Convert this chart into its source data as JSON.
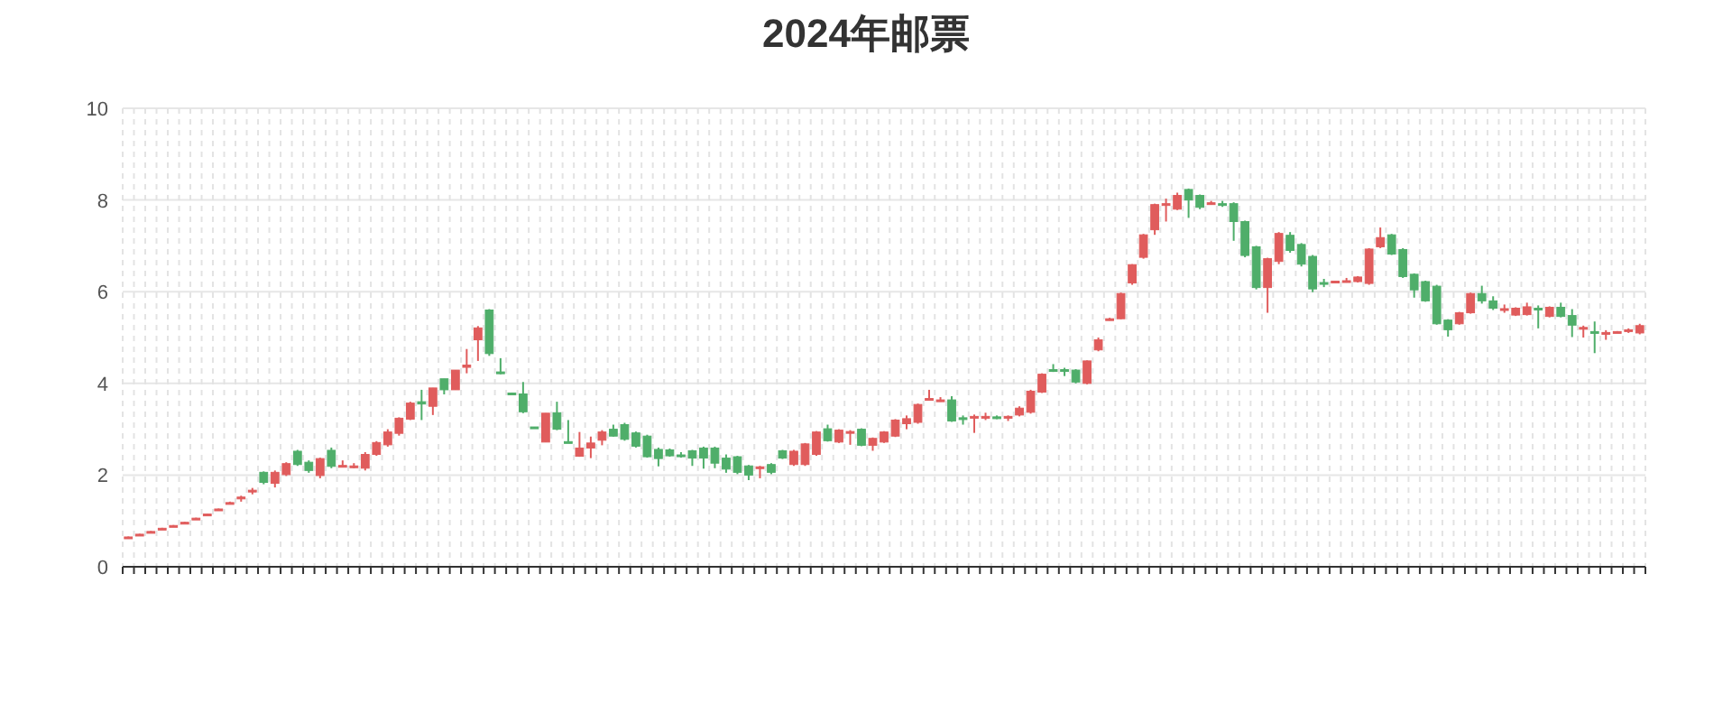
{
  "chart_data": {
    "type": "candlestick",
    "title": "2024年邮票",
    "categories": [
      null,
      null,
      null,
      null,
      null,
      null,
      null,
      null,
      null,
      null,
      null,
      null,
      null,
      null,
      null,
      null,
      null,
      null,
      null,
      null,
      null,
      null,
      null,
      null,
      null,
      null,
      null,
      null,
      null,
      null,
      null,
      null,
      null,
      null,
      null,
      null,
      null,
      null,
      null,
      null,
      null,
      null,
      null,
      null,
      null,
      null,
      null,
      null,
      null,
      null,
      null,
      null,
      null,
      null,
      null,
      null,
      null,
      null,
      null,
      null,
      null,
      null,
      null,
      null,
      null,
      null,
      null,
      null,
      null,
      null,
      null,
      null,
      null,
      null,
      null,
      null,
      null,
      null,
      null,
      null,
      null,
      null,
      null,
      null,
      null,
      null,
      null,
      null,
      null,
      null,
      null,
      null,
      null,
      null,
      null,
      null,
      null,
      null,
      null,
      null,
      null,
      null,
      null,
      null,
      null,
      null,
      null,
      null,
      null,
      null,
      null,
      null,
      null,
      null,
      null,
      null,
      null,
      null,
      null,
      null,
      null,
      null,
      null,
      null,
      null,
      null,
      null,
      null,
      null,
      null,
      null,
      null,
      null,
      null,
      null
    ],
    "ohlc": [
      [
        0.63,
        0.66,
        0.62,
        0.65
      ],
      [
        0.7,
        0.72,
        0.69,
        0.71
      ],
      [
        0.76,
        0.78,
        0.75,
        0.77
      ],
      [
        0.83,
        0.85,
        0.82,
        0.84
      ],
      [
        0.89,
        0.91,
        0.88,
        0.9
      ],
      [
        0.96,
        0.98,
        0.95,
        0.97
      ],
      [
        1.05,
        1.07,
        1.04,
        1.06
      ],
      [
        1.14,
        1.16,
        1.13,
        1.15
      ],
      [
        1.25,
        1.27,
        1.24,
        1.26
      ],
      [
        1.38,
        1.42,
        1.37,
        1.4
      ],
      [
        1.5,
        1.55,
        1.42,
        1.52
      ],
      [
        1.65,
        1.72,
        1.58,
        1.67
      ],
      [
        2.06,
        2.08,
        1.8,
        1.84
      ],
      [
        1.82,
        2.1,
        1.73,
        2.06
      ],
      [
        2.01,
        2.28,
        1.98,
        2.25
      ],
      [
        2.52,
        2.55,
        2.2,
        2.23
      ],
      [
        2.28,
        2.32,
        2.05,
        2.1
      ],
      [
        1.99,
        2.38,
        1.93,
        2.36
      ],
      [
        2.54,
        2.6,
        2.15,
        2.19
      ],
      [
        2.2,
        2.32,
        2.18,
        2.21
      ],
      [
        2.18,
        2.26,
        2.15,
        2.2
      ],
      [
        2.15,
        2.5,
        2.1,
        2.45
      ],
      [
        2.45,
        2.74,
        2.42,
        2.71
      ],
      [
        2.66,
        3.0,
        2.62,
        2.94
      ],
      [
        2.91,
        3.26,
        2.86,
        3.24
      ],
      [
        3.22,
        3.6,
        3.2,
        3.57
      ],
      [
        3.6,
        3.86,
        3.2,
        3.55
      ],
      [
        3.5,
        3.9,
        3.31,
        3.9
      ],
      [
        4.1,
        4.1,
        3.76,
        3.86
      ],
      [
        3.86,
        4.29,
        3.86,
        4.29
      ],
      [
        4.35,
        4.75,
        4.22,
        4.4
      ],
      [
        4.95,
        5.25,
        4.49,
        5.21
      ],
      [
        5.6,
        5.62,
        4.6,
        4.65
      ],
      [
        4.25,
        4.55,
        4.2,
        4.22
      ],
      [
        3.79,
        3.8,
        3.76,
        3.78
      ],
      [
        3.77,
        4.03,
        3.35,
        3.38
      ],
      [
        3.05,
        3.05,
        3.02,
        3.04
      ],
      [
        2.72,
        3.35,
        2.72,
        3.35
      ],
      [
        3.36,
        3.6,
        2.98,
        3.0
      ],
      [
        2.73,
        3.2,
        2.7,
        2.72
      ],
      [
        2.41,
        2.94,
        2.4,
        2.59
      ],
      [
        2.59,
        2.84,
        2.37,
        2.7
      ],
      [
        2.76,
        2.98,
        2.65,
        2.94
      ],
      [
        3.0,
        3.1,
        2.84,
        2.85
      ],
      [
        3.1,
        3.14,
        2.75,
        2.78
      ],
      [
        2.92,
        2.95,
        2.6,
        2.63
      ],
      [
        2.85,
        2.88,
        2.38,
        2.4
      ],
      [
        2.56,
        2.6,
        2.19,
        2.36
      ],
      [
        2.55,
        2.58,
        2.4,
        2.42
      ],
      [
        2.44,
        2.5,
        2.38,
        2.42
      ],
      [
        2.53,
        2.55,
        2.2,
        2.37
      ],
      [
        2.59,
        2.62,
        2.14,
        2.37
      ],
      [
        2.59,
        2.62,
        2.15,
        2.26
      ],
      [
        2.37,
        2.45,
        2.05,
        2.13
      ],
      [
        2.4,
        2.42,
        2.02,
        2.06
      ],
      [
        2.2,
        2.22,
        1.89,
        2.0
      ],
      [
        2.17,
        2.2,
        1.93,
        2.18
      ],
      [
        2.23,
        2.26,
        2.02,
        2.06
      ],
      [
        2.53,
        2.55,
        2.35,
        2.37
      ],
      [
        2.23,
        2.55,
        2.2,
        2.52
      ],
      [
        2.23,
        2.7,
        2.2,
        2.68
      ],
      [
        2.45,
        2.96,
        2.42,
        2.94
      ],
      [
        3.01,
        3.1,
        2.73,
        2.75
      ],
      [
        2.72,
        3.0,
        2.7,
        2.98
      ],
      [
        2.93,
        2.98,
        2.66,
        2.95
      ],
      [
        3.0,
        3.02,
        2.63,
        2.65
      ],
      [
        2.65,
        2.82,
        2.53,
        2.8
      ],
      [
        2.72,
        2.96,
        2.7,
        2.94
      ],
      [
        2.85,
        3.22,
        2.83,
        3.2
      ],
      [
        3.12,
        3.3,
        3.0,
        3.23
      ],
      [
        3.15,
        3.56,
        3.12,
        3.54
      ],
      [
        3.66,
        3.86,
        3.64,
        3.67
      ],
      [
        3.62,
        3.7,
        3.6,
        3.64
      ],
      [
        3.64,
        3.72,
        3.16,
        3.18
      ],
      [
        3.25,
        3.3,
        3.1,
        3.24
      ],
      [
        3.27,
        3.32,
        2.92,
        3.28
      ],
      [
        3.26,
        3.36,
        3.2,
        3.28
      ],
      [
        3.27,
        3.3,
        3.22,
        3.25
      ],
      [
        3.26,
        3.3,
        3.18,
        3.28
      ],
      [
        3.31,
        3.5,
        3.28,
        3.46
      ],
      [
        3.37,
        3.86,
        3.34,
        3.83
      ],
      [
        3.81,
        4.22,
        3.79,
        4.2
      ],
      [
        4.3,
        4.42,
        4.25,
        4.29
      ],
      [
        4.3,
        4.34,
        4.16,
        4.28
      ],
      [
        4.29,
        4.31,
        4.0,
        4.03
      ],
      [
        4.0,
        4.5,
        3.98,
        4.49
      ],
      [
        4.73,
        5.0,
        4.7,
        4.95
      ],
      [
        5.39,
        5.43,
        5.37,
        5.41
      ],
      [
        5.41,
        5.98,
        5.4,
        5.96
      ],
      [
        6.19,
        6.6,
        6.15,
        6.59
      ],
      [
        6.75,
        7.26,
        6.72,
        7.24
      ],
      [
        7.35,
        7.92,
        7.24,
        7.9
      ],
      [
        7.9,
        8.03,
        7.53,
        7.92
      ],
      [
        7.8,
        8.16,
        7.78,
        8.1
      ],
      [
        8.23,
        8.25,
        7.61,
        8.0
      ],
      [
        8.1,
        8.12,
        7.8,
        7.84
      ],
      [
        7.93,
        7.98,
        7.9,
        7.94
      ],
      [
        7.92,
        7.98,
        7.85,
        7.9
      ],
      [
        7.92,
        7.95,
        7.11,
        7.53
      ],
      [
        7.53,
        7.55,
        6.75,
        6.79
      ],
      [
        6.98,
        7.0,
        6.05,
        6.09
      ],
      [
        6.09,
        6.74,
        5.54,
        6.72
      ],
      [
        6.66,
        7.3,
        6.6,
        7.27
      ],
      [
        7.23,
        7.3,
        6.85,
        6.9
      ],
      [
        7.03,
        7.06,
        6.55,
        6.6
      ],
      [
        6.77,
        6.8,
        5.99,
        6.06
      ],
      [
        6.2,
        6.28,
        6.1,
        6.18
      ],
      [
        6.22,
        6.24,
        6.2,
        6.23
      ],
      [
        6.23,
        6.3,
        6.2,
        6.24
      ],
      [
        6.22,
        6.34,
        6.2,
        6.32
      ],
      [
        6.18,
        6.95,
        6.15,
        6.93
      ],
      [
        6.98,
        7.4,
        6.95,
        7.18
      ],
      [
        7.24,
        7.26,
        6.8,
        6.82
      ],
      [
        6.92,
        6.95,
        6.3,
        6.33
      ],
      [
        6.38,
        6.4,
        5.87,
        6.04
      ],
      [
        6.22,
        6.24,
        5.78,
        5.8
      ],
      [
        6.12,
        6.15,
        5.28,
        5.3
      ],
      [
        5.38,
        5.4,
        5.02,
        5.17
      ],
      [
        5.3,
        5.56,
        5.28,
        5.54
      ],
      [
        5.54,
        5.98,
        5.52,
        5.96
      ],
      [
        5.96,
        6.13,
        5.74,
        5.8
      ],
      [
        5.8,
        5.9,
        5.6,
        5.64
      ],
      [
        5.62,
        5.72,
        5.54,
        5.63
      ],
      [
        5.49,
        5.66,
        5.47,
        5.64
      ],
      [
        5.5,
        5.76,
        5.48,
        5.67
      ],
      [
        5.64,
        5.7,
        5.2,
        5.63
      ],
      [
        5.46,
        5.68,
        5.44,
        5.66
      ],
      [
        5.66,
        5.76,
        5.44,
        5.46
      ],
      [
        5.48,
        5.62,
        5.01,
        5.27
      ],
      [
        5.2,
        5.26,
        5.0,
        5.22
      ],
      [
        5.13,
        5.35,
        4.66,
        5.1
      ],
      [
        5.1,
        5.16,
        4.95,
        5.11
      ],
      [
        5.12,
        5.14,
        5.1,
        5.13
      ],
      [
        5.16,
        5.2,
        5.1,
        5.17
      ],
      [
        5.1,
        5.3,
        5.07,
        5.26
      ]
    ],
    "colors": [
      "#e05c5c",
      "#e05c5c",
      "#e05c5c",
      "#e05c5c",
      "#e05c5c",
      "#e05c5c",
      "#e05c5c",
      "#e05c5c",
      "#e05c5c",
      "#e05c5c",
      "#e05c5c",
      "#e05c5c",
      "#4fae6a",
      "#e05c5c",
      "#e05c5c",
      "#4fae6a",
      "#4fae6a",
      "#e05c5c",
      "#4fae6a",
      "#e05c5c",
      "#e05c5c",
      "#e05c5c",
      "#e05c5c",
      "#e05c5c",
      "#e05c5c",
      "#e05c5c",
      "#4fae6a",
      "#e05c5c",
      "#4fae6a",
      "#e05c5c",
      "#e05c5c",
      "#e05c5c",
      "#4fae6a",
      "#4fae6a",
      "#4fae6a",
      "#4fae6a",
      "#4fae6a",
      "#e05c5c",
      "#4fae6a",
      "#4fae6a",
      "#e05c5c",
      "#e05c5c",
      "#e05c5c",
      "#4fae6a",
      "#4fae6a",
      "#4fae6a",
      "#4fae6a",
      "#4fae6a",
      "#4fae6a",
      "#4fae6a",
      "#4fae6a",
      "#4fae6a",
      "#4fae6a",
      "#4fae6a",
      "#4fae6a",
      "#4fae6a",
      "#e05c5c",
      "#4fae6a",
      "#4fae6a",
      "#e05c5c",
      "#e05c5c",
      "#e05c5c",
      "#4fae6a",
      "#e05c5c",
      "#e05c5c",
      "#4fae6a",
      "#e05c5c",
      "#e05c5c",
      "#e05c5c",
      "#e05c5c",
      "#e05c5c",
      "#e05c5c",
      "#e05c5c",
      "#4fae6a",
      "#4fae6a",
      "#e05c5c",
      "#e05c5c",
      "#4fae6a",
      "#e05c5c",
      "#e05c5c",
      "#e05c5c",
      "#e05c5c",
      "#4fae6a",
      "#4fae6a",
      "#4fae6a",
      "#e05c5c",
      "#e05c5c",
      "#e05c5c",
      "#e05c5c",
      "#e05c5c",
      "#e05c5c",
      "#e05c5c",
      "#e05c5c",
      "#e05c5c",
      "#4fae6a",
      "#4fae6a",
      "#e05c5c",
      "#4fae6a",
      "#4fae6a",
      "#4fae6a",
      "#4fae6a",
      "#e05c5c",
      "#e05c5c",
      "#4fae6a",
      "#4fae6a",
      "#4fae6a",
      "#4fae6a",
      "#e05c5c",
      "#e05c5c",
      "#e05c5c",
      "#e05c5c",
      "#e05c5c",
      "#4fae6a",
      "#4fae6a",
      "#4fae6a",
      "#4fae6a",
      "#4fae6a",
      "#4fae6a",
      "#e05c5c",
      "#e05c5c",
      "#4fae6a",
      "#4fae6a",
      "#e05c5c",
      "#e05c5c",
      "#e05c5c",
      "#4fae6a",
      "#e05c5c",
      "#4fae6a",
      "#4fae6a",
      "#e05c5c",
      "#4fae6a",
      "#e05c5c",
      "#e05c5c",
      "#e05c5c",
      "#e05c5c"
    ],
    "ylim": [
      0,
      10
    ],
    "yticks": [
      0,
      2,
      4,
      6,
      8,
      10
    ],
    "grid": true
  }
}
